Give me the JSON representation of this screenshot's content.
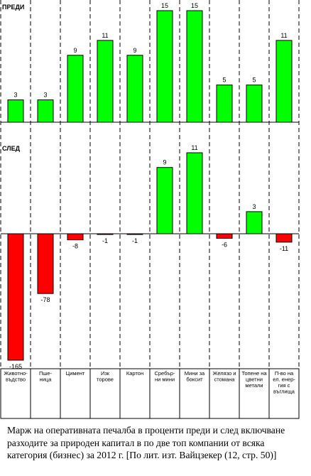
{
  "chart_data": {
    "type": "bar",
    "categories": [
      "Животно-въдство",
      "Пше-ница",
      "Цимент",
      "Изк торове",
      "Картон",
      "Сребър-ни мини",
      "Мини за боксит",
      "Желязо и стомана",
      "Топене на цветни метали",
      "П-во на ел. енер-гия с въглища"
    ],
    "category_lines": [
      [
        "Животно-",
        "въдство"
      ],
      [
        "Пше-",
        "ница"
      ],
      [
        "Цимент"
      ],
      [
        "Изк",
        "торове"
      ],
      [
        "Картон"
      ],
      [
        "Сребър-",
        "ни мини"
      ],
      [
        "Мини за",
        "боксит"
      ],
      [
        "Желязо и",
        "стомана"
      ],
      [
        "Топене на",
        "цветни",
        "метали"
      ],
      [
        "П-во на",
        "ел. енер-",
        "гия с",
        "въглища"
      ]
    ],
    "series": [
      {
        "name": "ПРЕДИ",
        "values": [
          3,
          3,
          9,
          11,
          9,
          15,
          15,
          5,
          5,
          11
        ]
      },
      {
        "name": "СЛЕД",
        "values": [
          -165,
          -78,
          -8,
          -1,
          -1,
          9,
          11,
          -6,
          3,
          -11
        ]
      }
    ],
    "colors": {
      "positive": "#00ff00",
      "negative": "#ff0000"
    }
  },
  "caption": "Марж на оперативната печалба в проценти преди и след включване разходите за природен капитал в по две топ компании от всяка категория (бизнес) за 2012 г. [По лит. изт. Вайцзекер (12, стр. 50)]"
}
